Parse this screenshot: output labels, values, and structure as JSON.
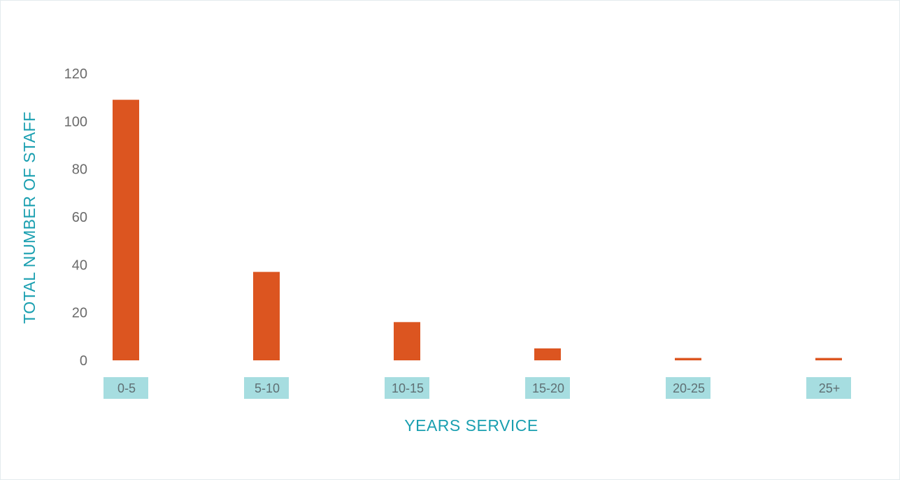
{
  "chart_data": {
    "type": "bar",
    "title": "",
    "xlabel": "YEARS SERVICE",
    "ylabel": "TOTAL NUMBER OF STAFF",
    "categories": [
      "0-5",
      "5-10",
      "10-15",
      "15-20",
      "20-25",
      "25+"
    ],
    "values": [
      109,
      37,
      16,
      5,
      1,
      1
    ],
    "ylim": [
      0,
      120
    ],
    "yticks": [
      "0",
      "20",
      "40",
      "60",
      "80",
      "100",
      "120"
    ],
    "grid": false,
    "legend": "none",
    "colors": {
      "bar": "#dc5520",
      "category_box": "#a6dde0",
      "axis_title": "#1a9fb0",
      "tick_label": "#6b6b6b"
    }
  }
}
